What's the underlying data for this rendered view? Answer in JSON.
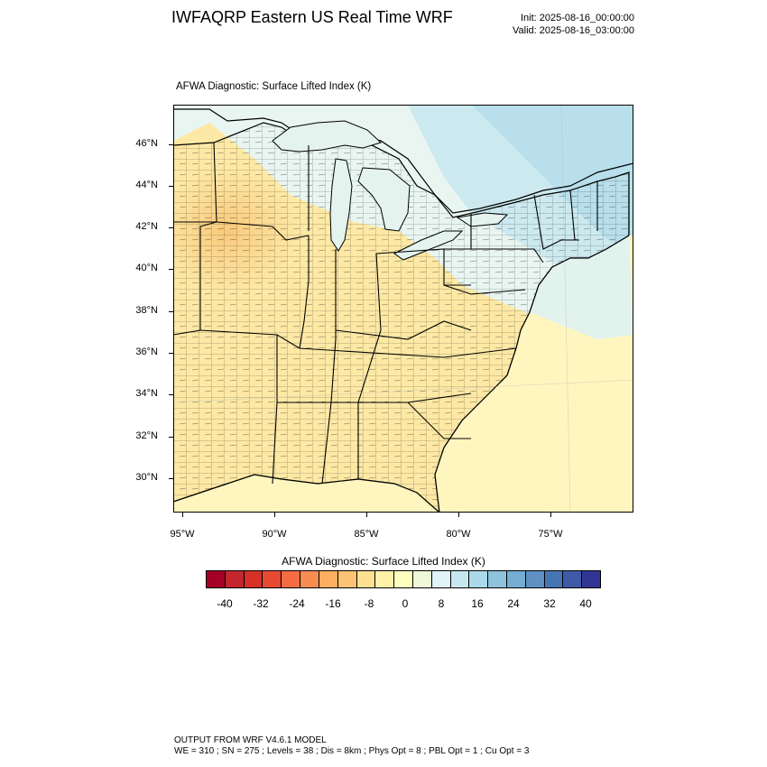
{
  "header": {
    "title": "IWFAQRP Eastern US Real Time WRF",
    "init": "Init: 2025-08-16_00:00:00",
    "valid": "Valid: 2025-08-16_03:00:00"
  },
  "field_title": "AFWA Diagnostic: Surface Lifted Index   (K)",
  "map": {
    "lat_labels": [
      "46°N",
      "44°N",
      "42°N",
      "40°N",
      "38°N",
      "36°N",
      "34°N",
      "32°N",
      "30°N"
    ],
    "lon_labels": [
      "95°W",
      "90°W",
      "85°W",
      "80°W",
      "75°W"
    ],
    "colors": {
      "warm_fill": "#fde9a5",
      "warm_light": "#fff6bf",
      "cool_fill": "#e8f5f0",
      "cool_mid": "#cce9ef",
      "cool_deep": "#b8dfeb",
      "lake": "#e4f3ee"
    }
  },
  "colorbar": {
    "title": "AFWA Diagnostic: Surface Lifted Index  (K)",
    "labels": [
      "-40",
      "-32",
      "-24",
      "-16",
      "-8",
      "0",
      "8",
      "16",
      "24",
      "32",
      "40"
    ],
    "colors": [
      "#a50026",
      "#c1272d",
      "#d73027",
      "#e64a33",
      "#f46d43",
      "#f88d52",
      "#fdae61",
      "#fdc374",
      "#fee090",
      "#fff1aa",
      "#ffffbf",
      "#eef9d7",
      "#e0f3f8",
      "#c6e7f1",
      "#abd9e9",
      "#8fc3dd",
      "#74add1",
      "#5f8fc3",
      "#4575b4",
      "#3f5aa7",
      "#313695"
    ]
  },
  "footer": {
    "line1": "OUTPUT FROM WRF V4.6.1 MODEL",
    "line2": "WE = 310 ; SN = 275 ; Levels = 38 ; Dis = 8km ; Phys Opt = 8 ; PBL Opt = 1 ; Cu Opt = 3"
  }
}
